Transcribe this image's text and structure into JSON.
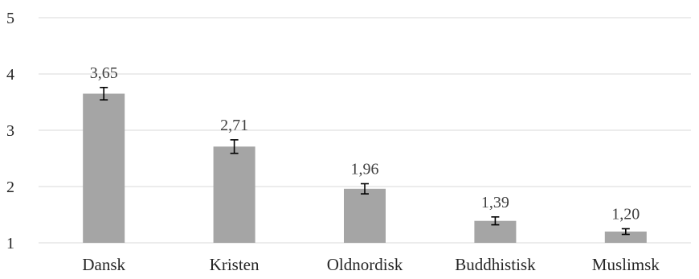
{
  "chart_data": {
    "type": "bar",
    "title": "",
    "xlabel": "",
    "ylabel": "",
    "categories": [
      "Dansk",
      "Kristen",
      "Oldnordisk",
      "Buddhistisk",
      "Muslimsk"
    ],
    "values": [
      3.65,
      2.71,
      1.96,
      1.39,
      1.2
    ],
    "value_labels": [
      "3,65",
      "2,71",
      "1,96",
      "1,39",
      "1,20"
    ],
    "error_bars": [
      0.11,
      0.12,
      0.09,
      0.07,
      0.05
    ],
    "ylim": [
      1,
      5
    ],
    "yticks": [
      1,
      2,
      3,
      4,
      5
    ],
    "ytick_labels": [
      "1",
      "2",
      "3",
      "4",
      "5"
    ],
    "grid": true,
    "legend": "none",
    "bar_color": "#a5a5a5",
    "grid_color": "#d9d9d9",
    "error_bar_color": "#000000"
  }
}
